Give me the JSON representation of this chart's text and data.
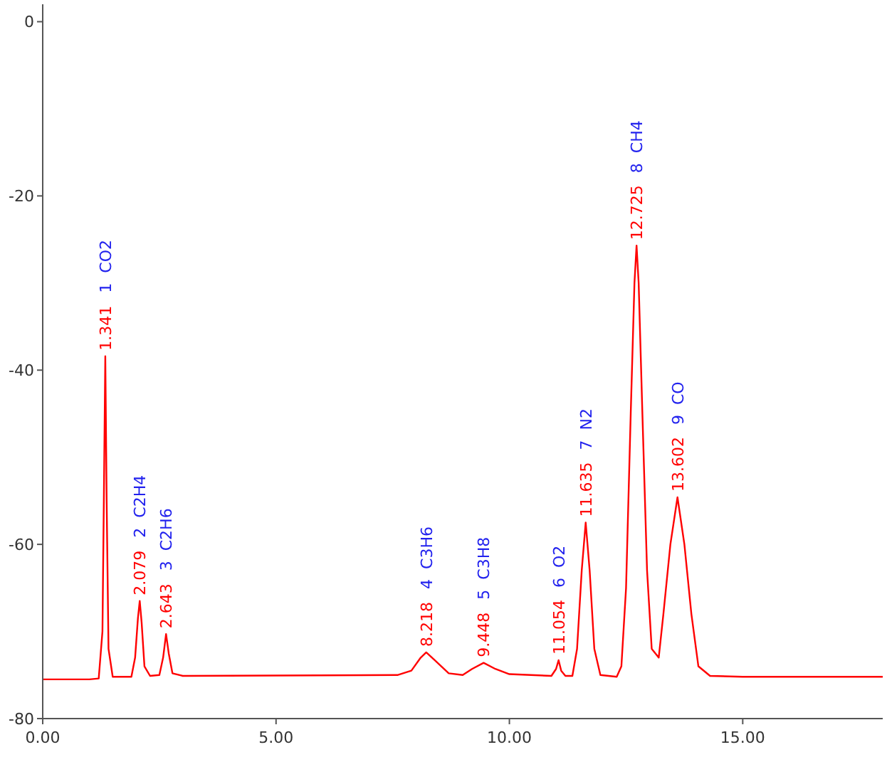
{
  "chart_data": {
    "type": "line",
    "x": [
      0,
      1.0,
      1.2,
      1.28,
      1.31,
      1.341,
      1.37,
      1.41,
      1.5,
      1.9,
      1.98,
      2.04,
      2.079,
      2.12,
      2.18,
      2.3,
      2.5,
      2.58,
      2.643,
      2.7,
      2.78,
      3.0,
      7.6,
      7.9,
      8.1,
      8.218,
      8.4,
      8.7,
      9.0,
      9.2,
      9.448,
      9.7,
      10.0,
      10.9,
      11.0,
      11.054,
      11.11,
      11.2,
      11.35,
      11.45,
      11.55,
      11.635,
      11.72,
      11.82,
      11.95,
      12.3,
      12.4,
      12.5,
      12.6,
      12.68,
      12.725,
      12.77,
      12.85,
      12.95,
      13.05,
      13.2,
      13.3,
      13.45,
      13.602,
      13.75,
      13.9,
      14.05,
      14.3,
      15,
      18
    ],
    "series": [
      {
        "color": "#ff0000",
        "values": [
          -75.5,
          -75.5,
          -75.4,
          -70,
          -55,
          -38.4,
          -55,
          -72,
          -75.2,
          -75.2,
          -73,
          -68.5,
          -66.5,
          -69,
          -74,
          -75.1,
          -75.0,
          -73,
          -70.3,
          -72.5,
          -74.8,
          -75.1,
          -75.0,
          -74.5,
          -73,
          -72.4,
          -73.3,
          -74.8,
          -75.0,
          -74.3,
          -73.6,
          -74.3,
          -74.9,
          -75.1,
          -74.3,
          -73.3,
          -74.5,
          -75.1,
          -75.1,
          -72,
          -63,
          -57.5,
          -63,
          -72,
          -75.0,
          -75.2,
          -74,
          -65,
          -45,
          -30,
          -25.7,
          -30,
          -45,
          -63,
          -72,
          -73,
          -68,
          -60,
          -54.6,
          -60,
          -68,
          -74,
          -75.1,
          -75.2,
          -75.2
        ]
      }
    ],
    "xlim": [
      0,
      18
    ],
    "ylim": [
      -80,
      2
    ],
    "xticks": [
      {
        "value": 0,
        "label": "0.00"
      },
      {
        "value": 5,
        "label": "5.00"
      },
      {
        "value": 10,
        "label": "10.00"
      },
      {
        "value": 15,
        "label": "15.00"
      }
    ],
    "yticks": [
      0,
      -20,
      -40,
      -60,
      -80
    ],
    "grid": false,
    "marker": "none",
    "line_style": "solid",
    "annotations": [
      {
        "text": "1.341",
        "x": 1.341,
        "y": -38.4
      },
      "1  CO2",
      {
        "text": "2.079",
        "x": 2.079,
        "y": -66.5
      },
      "2  C2H4",
      {
        "text": "2.643",
        "x": 2.643,
        "y": -70.3
      },
      "3  C2H6",
      {
        "text": "8.218",
        "x": 8.218,
        "y": -72.4
      },
      "4  C3H6",
      {
        "text": "9.448",
        "x": 9.448,
        "y": -73.6
      },
      "5  C3H8",
      {
        "text": "11.054",
        "x": 11.054,
        "y": -73.3
      },
      "6  O2",
      {
        "text": "11.635",
        "x": 11.635,
        "y": -57.5
      },
      "7  N2",
      {
        "text": "12.725",
        "x": 12.725,
        "y": -25.7
      },
      "8  CH4",
      {
        "text": "13.602",
        "x": 13.602,
        "y": -54.6
      },
      "9  CO"
    ]
  }
}
